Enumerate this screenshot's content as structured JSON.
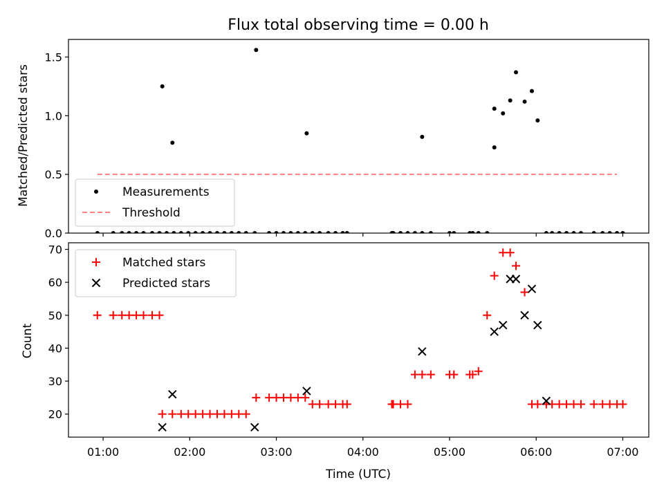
{
  "chart_data": [
    {
      "type": "scatter",
      "title": "Flux total observing time = 0.00 h",
      "xlabel": "",
      "ylabel": "Matched/Predicted stars",
      "xlim": [
        "00:36",
        "07:18"
      ],
      "ylim": [
        0,
        1.65
      ],
      "yticks": [
        0.0,
        0.5,
        1.0,
        1.5
      ],
      "ytick_labels": [
        "0.0",
        "0.5",
        "1.0",
        "1.5"
      ],
      "legend_position": "lower-left",
      "series": [
        {
          "name": "Measurements",
          "marker": "dot",
          "color": "#000000",
          "x": [
            "00:56",
            "01:07",
            "01:13",
            "01:18",
            "01:23",
            "01:28",
            "01:34",
            "01:39",
            "01:44",
            "01:41",
            "01:48",
            "01:49",
            "01:54",
            "01:59",
            "02:04",
            "02:09",
            "02:14",
            "02:19",
            "02:24",
            "02:29",
            "02:34",
            "02:39",
            "02:45",
            "02:46",
            "02:55",
            "03:00",
            "03:05",
            "03:10",
            "03:15",
            "03:20",
            "03:25",
            "03:21",
            "03:30",
            "03:36",
            "03:41",
            "03:46",
            "03:49",
            "04:20",
            "04:21",
            "04:26",
            "04:31",
            "04:36",
            "04:41",
            "04:41",
            "04:47",
            "05:00",
            "05:03",
            "05:14",
            "05:16",
            "05:20",
            "05:26",
            "05:31",
            "05:31",
            "05:37",
            "05:42",
            "05:46",
            "05:52",
            "05:57",
            "06:01",
            "06:07",
            "06:11",
            "06:16",
            "06:21",
            "06:26",
            "06:31",
            "06:40",
            "06:46",
            "06:51",
            "06:56",
            "07:00"
          ],
          "y": [
            0,
            0,
            0,
            0,
            0,
            0,
            0,
            0,
            0,
            1.25,
            0.77,
            0,
            0,
            0,
            0,
            0,
            0,
            0,
            0,
            0,
            0,
            0,
            0,
            1.56,
            0,
            0,
            0,
            0,
            0,
            0,
            0,
            0.85,
            0,
            0,
            0,
            0,
            0,
            0,
            0,
            0,
            0,
            0,
            0.82,
            0,
            0,
            0,
            0,
            0,
            0,
            0,
            0,
            0.73,
            1.06,
            1.02,
            1.13,
            1.37,
            1.12,
            1.21,
            0.96,
            0,
            0,
            0,
            0,
            0,
            0,
            0,
            0,
            0,
            0,
            0
          ]
        },
        {
          "name": "Threshold",
          "style": "dashed-line",
          "color": "#ff7f7f",
          "x": [
            "00:56",
            "06:56"
          ],
          "y": [
            0.5,
            0.5
          ]
        }
      ]
    },
    {
      "type": "scatter",
      "title": "",
      "xlabel": "Time (UTC)",
      "ylabel": "Count",
      "xlim": [
        "00:36",
        "07:18"
      ],
      "ylim": [
        13,
        72
      ],
      "yticks": [
        20,
        30,
        40,
        50,
        60,
        70
      ],
      "ytick_labels": [
        "20",
        "30",
        "40",
        "50",
        "60",
        "70"
      ],
      "xticks": [
        "01:00",
        "02:00",
        "03:00",
        "04:00",
        "05:00",
        "06:00",
        "07:00"
      ],
      "xtick_labels": [
        "01:00",
        "02:00",
        "03:00",
        "04:00",
        "05:00",
        "06:00",
        "07:00"
      ],
      "legend_position": "upper-left",
      "series": [
        {
          "name": "Matched stars",
          "marker": "plus",
          "color": "#ff0000",
          "x": [
            "00:56",
            "01:07",
            "01:13",
            "01:18",
            "01:23",
            "01:28",
            "01:34",
            "01:39",
            "01:41",
            "01:48",
            "01:54",
            "01:59",
            "02:04",
            "02:09",
            "02:14",
            "02:19",
            "02:24",
            "02:29",
            "02:34",
            "02:39",
            "02:46",
            "02:55",
            "03:00",
            "03:05",
            "03:10",
            "03:15",
            "03:20",
            "03:25",
            "03:30",
            "03:36",
            "03:41",
            "03:46",
            "03:49",
            "04:20",
            "04:21",
            "04:26",
            "04:31",
            "04:36",
            "04:41",
            "04:47",
            "05:00",
            "05:03",
            "05:14",
            "05:16",
            "05:20",
            "05:26",
            "05:31",
            "05:37",
            "05:42",
            "05:46",
            "05:52",
            "05:57",
            "06:01",
            "06:07",
            "06:11",
            "06:16",
            "06:21",
            "06:26",
            "06:31",
            "06:40",
            "06:46",
            "06:51",
            "06:56",
            "07:00"
          ],
          "y": [
            50,
            50,
            50,
            50,
            50,
            50,
            50,
            50,
            20,
            20,
            20,
            20,
            20,
            20,
            20,
            20,
            20,
            20,
            20,
            20,
            25,
            25,
            25,
            25,
            25,
            25,
            25,
            23,
            23,
            23,
            23,
            23,
            23,
            23,
            23,
            23,
            23,
            32,
            32,
            32,
            32,
            32,
            32,
            32,
            33,
            50,
            62,
            69,
            69,
            65,
            57,
            23,
            23,
            23,
            23,
            23,
            23,
            23,
            23,
            23,
            23,
            23,
            23,
            23
          ]
        },
        {
          "name": "Predicted stars",
          "marker": "x",
          "color": "#000000",
          "x": [
            "01:41",
            "01:48",
            "02:45",
            "03:21",
            "04:41",
            "05:31",
            "05:37",
            "05:42",
            "05:46",
            "05:52",
            "05:57",
            "06:01",
            "06:07"
          ],
          "y": [
            16,
            26,
            16,
            27,
            39,
            45,
            47,
            61,
            61,
            50,
            58,
            47,
            24
          ]
        }
      ]
    }
  ]
}
